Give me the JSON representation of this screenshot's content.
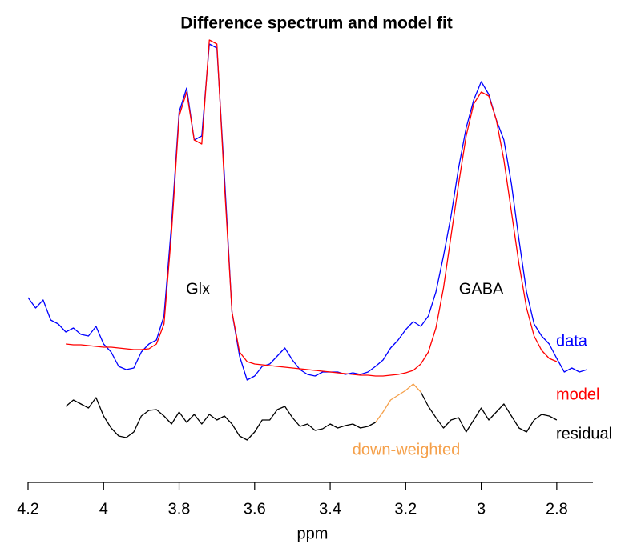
{
  "chart_data": {
    "type": "line",
    "title": "Difference spectrum and model fit",
    "xlabel": "ppm",
    "xlim": [
      4.2,
      2.7
    ],
    "ylim": [
      0,
      560
    ],
    "xticks": [
      {
        "value": 4.2,
        "label": "4.2"
      },
      4,
      {
        "value": 3.8,
        "label": "3.8"
      },
      {
        "value": 3.6,
        "label": "3.6"
      },
      {
        "value": 3.4,
        "label": "3.4"
      },
      {
        "value": 3.2,
        "label": "3.2"
      },
      3,
      {
        "value": 2.8,
        "label": "2.8"
      }
    ],
    "annotations": [
      {
        "text": "Glx",
        "x": 3.75
      },
      {
        "text": "GABA",
        "x": 3.0
      }
    ],
    "x": [
      4.2,
      4.18,
      4.16,
      4.14,
      4.12,
      4.1,
      4.08,
      4.06,
      4.04,
      4.02,
      4,
      3.98,
      3.96,
      3.94,
      3.92,
      3.9,
      3.88,
      3.86,
      3.84,
      3.82,
      3.8,
      3.78,
      3.76,
      3.74,
      3.72,
      3.7,
      3.68,
      3.66,
      3.64,
      3.62,
      3.6,
      3.58,
      3.56,
      3.54,
      3.52,
      3.5,
      3.48,
      3.46,
      3.44,
      3.42,
      3.4,
      3.38,
      3.36,
      3.34,
      3.32,
      3.3,
      3.28,
      3.26,
      3.24,
      3.22,
      3.2,
      3.18,
      3.16,
      3.14,
      3.12,
      3.1,
      3.08,
      3.06,
      3.04,
      3.02,
      3,
      2.98,
      2.96,
      2.94,
      2.92,
      2.9,
      2.88,
      2.86,
      2.84,
      2.82,
      2.8,
      2.78,
      2.76,
      2.74,
      2.72
    ],
    "series": [
      {
        "name": "data",
        "color": "#0000ff",
        "values": [
          228,
          215,
          225,
          200,
          195,
          185,
          190,
          182,
          180,
          192,
          170,
          160,
          142,
          138,
          140,
          160,
          170,
          175,
          205,
          320,
          460,
          490,
          425,
          430,
          545,
          540,
          380,
          210,
          155,
          125,
          130,
          142,
          145,
          155,
          165,
          150,
          138,
          132,
          130,
          135,
          135,
          135,
          132,
          134,
          132,
          135,
          142,
          150,
          165,
          175,
          188,
          198,
          192,
          205,
          235,
          280,
          330,
          390,
          440,
          475,
          498,
          482,
          450,
          425,
          370,
          300,
          235,
          195,
          180,
          170,
          152,
          135,
          140,
          135,
          138
        ]
      },
      {
        "name": "model",
        "color": "#ff0000",
        "values": [
          null,
          null,
          null,
          null,
          null,
          170,
          169,
          169,
          168,
          167,
          166,
          166,
          165,
          164,
          163,
          163,
          164,
          170,
          195,
          310,
          455,
          485,
          425,
          420,
          550,
          545,
          370,
          210,
          160,
          148,
          145,
          144,
          143,
          142,
          141,
          140,
          139,
          138,
          137,
          136,
          135,
          134,
          133,
          132,
          131,
          131,
          130,
          130,
          131,
          132,
          134,
          137,
          145,
          160,
          190,
          240,
          305,
          370,
          430,
          470,
          485,
          480,
          450,
          400,
          335,
          270,
          215,
          180,
          162,
          152,
          148,
          null,
          null,
          null,
          null
        ]
      },
      {
        "name": "residual",
        "color": "#000000",
        "values": [
          null,
          null,
          null,
          null,
          null,
          92,
          100,
          95,
          90,
          103,
          80,
          65,
          55,
          53,
          60,
          80,
          87,
          88,
          80,
          70,
          85,
          72,
          82,
          70,
          82,
          75,
          80,
          70,
          55,
          50,
          60,
          75,
          75,
          88,
          92,
          78,
          67,
          70,
          62,
          64,
          70,
          65,
          68,
          70,
          65,
          67,
          72,
          null,
          null,
          null,
          null,
          null,
          110,
          92,
          78,
          65,
          75,
          78,
          60,
          75,
          90,
          75,
          85,
          95,
          80,
          65,
          60,
          75,
          82,
          80,
          75,
          null,
          null,
          null,
          null
        ]
      },
      {
        "name": "down-weighted",
        "color": "#f5a04a",
        "values": [
          null,
          null,
          null,
          null,
          null,
          null,
          null,
          null,
          null,
          null,
          null,
          null,
          null,
          null,
          null,
          null,
          null,
          null,
          null,
          null,
          null,
          null,
          null,
          null,
          null,
          null,
          null,
          null,
          null,
          null,
          null,
          null,
          null,
          null,
          null,
          null,
          null,
          null,
          null,
          null,
          null,
          null,
          null,
          null,
          null,
          null,
          72,
          85,
          100,
          106,
          112,
          120,
          110,
          null,
          null,
          null,
          null,
          null,
          null,
          null,
          null,
          null,
          null,
          null,
          null,
          null,
          null,
          null,
          null,
          null,
          null,
          null,
          null,
          null,
          null
        ]
      }
    ]
  }
}
